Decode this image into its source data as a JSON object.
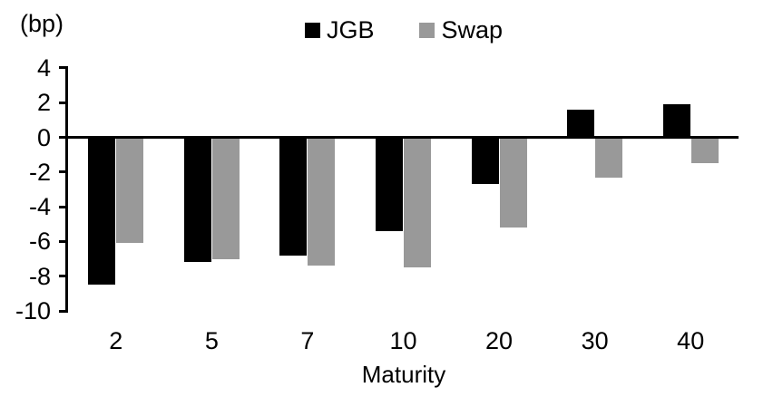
{
  "chart_data": {
    "type": "bar",
    "title": "",
    "unit_label": "(bp)",
    "xlabel": "Maturity",
    "ylabel": "",
    "categories": [
      "2",
      "5",
      "7",
      "10",
      "20",
      "30",
      "40"
    ],
    "series": [
      {
        "name": "JGB",
        "color": "#000000",
        "values": [
          -8.5,
          -7.2,
          -6.8,
          -5.4,
          -2.7,
          1.6,
          1.9
        ]
      },
      {
        "name": "Swap",
        "color": "#999999",
        "values": [
          -6.1,
          -7.0,
          -7.4,
          -7.5,
          -5.2,
          -2.3,
          -1.5
        ]
      }
    ],
    "y_axis": {
      "min": -10,
      "max": 4,
      "tick_step": 2,
      "ticks": [
        4,
        2,
        0,
        -2,
        -4,
        -6,
        -8,
        -10
      ]
    },
    "legend_position": "top-center",
    "grid": false,
    "axis_color": "#000000",
    "text_color": "#000000",
    "background_color": "#ffffff"
  }
}
